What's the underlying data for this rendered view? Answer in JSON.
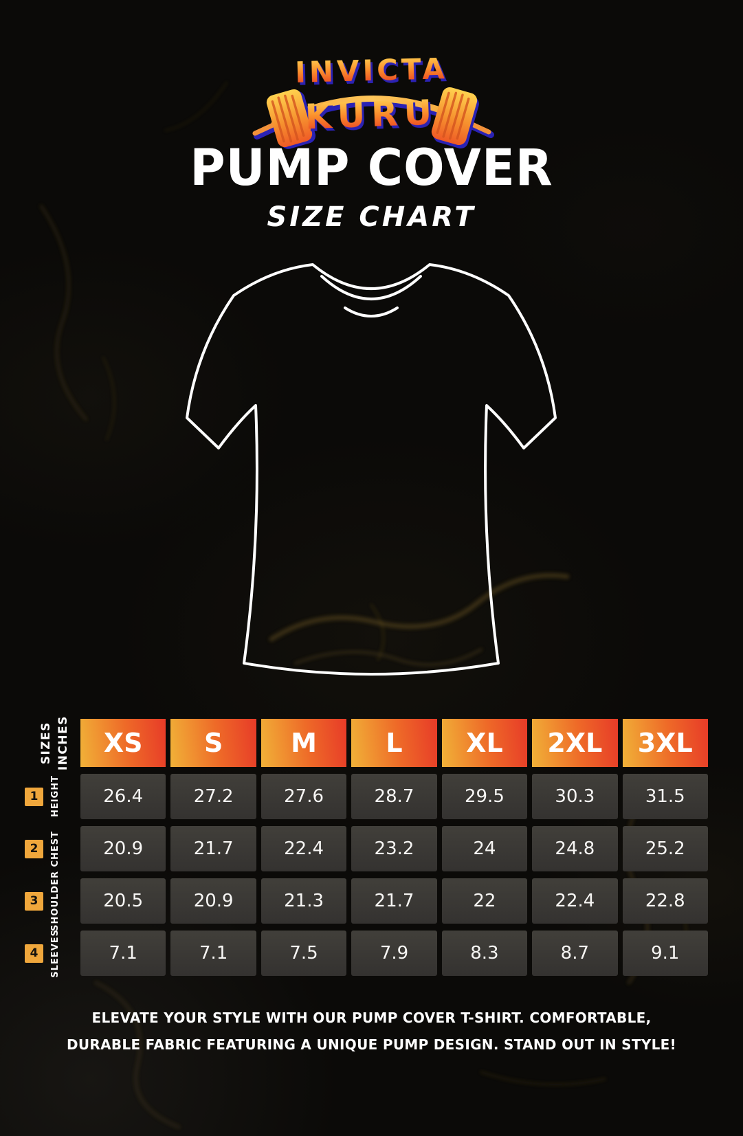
{
  "brand": {
    "name_top": "INVICTA",
    "name_bottom": "KURU",
    "logo_icon": "barbell-icon"
  },
  "title": "PUMP COVER",
  "subtitle": "SIZE CHART",
  "size_table": {
    "unit_labels": [
      "SIZES",
      "INCHES"
    ],
    "columns": [
      "XS",
      "S",
      "M",
      "L",
      "XL",
      "2XL",
      "3XL"
    ],
    "rows": [
      {
        "num": "1",
        "label": "HEIGHT",
        "values": [
          "26.4",
          "27.2",
          "27.6",
          "28.7",
          "29.5",
          "30.3",
          "31.5"
        ]
      },
      {
        "num": "2",
        "label": "CHEST",
        "values": [
          "20.9",
          "21.7",
          "22.4",
          "23.2",
          "24",
          "24.8",
          "25.2"
        ]
      },
      {
        "num": "3",
        "label": "SHOULDER",
        "values": [
          "20.5",
          "20.9",
          "21.3",
          "21.7",
          "22",
          "22.4",
          "22.8"
        ]
      },
      {
        "num": "4",
        "label": "SLEEVES",
        "values": [
          "7.1",
          "7.1",
          "7.5",
          "7.9",
          "8.3",
          "8.7",
          "9.1"
        ]
      }
    ]
  },
  "footer": {
    "line1": "ELEVATE YOUR STYLE WITH OUR PUMP COVER T-SHIRT. COMFORTABLE,",
    "line2": "DURABLE FABRIC FEATURING A UNIQUE PUMP DESIGN. STAND OUT IN STYLE!"
  },
  "colors": {
    "background": "#0b0a08",
    "header_gradient_start": "#f1b238",
    "header_gradient_end": "#e73b28",
    "accent_square": "#f0a73c",
    "cell_background": "#3a3834",
    "text": "#ffffff",
    "logo_gradient_top": "#ffd052",
    "logo_gradient_bottom": "#e73a22",
    "logo_shadow": "#2c22b2"
  },
  "chart_data": {
    "type": "table",
    "title": "PUMP COVER SIZE CHART",
    "units": "INCHES",
    "columns": [
      "XS",
      "S",
      "M",
      "L",
      "XL",
      "2XL",
      "3XL"
    ],
    "rows": [
      {
        "label": "HEIGHT",
        "values": [
          26.4,
          27.2,
          27.6,
          28.7,
          29.5,
          30.3,
          31.5
        ]
      },
      {
        "label": "CHEST",
        "values": [
          20.9,
          21.7,
          22.4,
          23.2,
          24,
          24.8,
          25.2
        ]
      },
      {
        "label": "SHOULDER",
        "values": [
          20.5,
          20.9,
          21.3,
          21.7,
          22,
          22.4,
          22.8
        ]
      },
      {
        "label": "SLEEVES",
        "values": [
          7.1,
          7.1,
          7.5,
          7.9,
          8.3,
          8.7,
          9.1
        ]
      }
    ],
    "layout": {
      "grid": true,
      "row_numbers": [
        1,
        2,
        3,
        4
      ]
    }
  }
}
